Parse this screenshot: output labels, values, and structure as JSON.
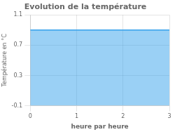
{
  "chart_data": {
    "type": "area",
    "title": "Evolution de la température",
    "x": [
      0,
      3
    ],
    "values": [
      0.9,
      0.9
    ],
    "xlabel": "heure par heure",
    "ylabel": "Température en °C",
    "xlim": [
      0,
      3
    ],
    "xticks": [
      0,
      1,
      2,
      3
    ],
    "ylim": [
      -0.1,
      1.1
    ],
    "yticks": [
      -0.1,
      0.3,
      0.7,
      1.1
    ],
    "grid": true
  }
}
